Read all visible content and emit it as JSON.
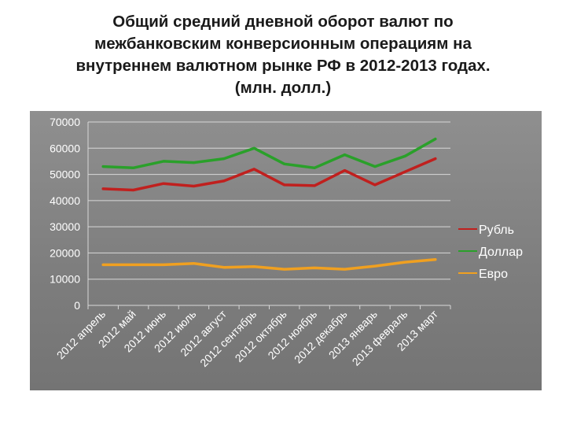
{
  "title": {
    "lines": [
      "Общий средний дневной оборот валют по",
      "межбанковским конверсионным операциям на",
      "внутреннем валютном рынке РФ в 2012-2013 годах.",
      "(млн. долл.)"
    ]
  },
  "chart_data": {
    "type": "line",
    "title": "Общий средний дневной оборот валют по межбанковским конверсионным операциям на внутреннем валютном рынке РФ в 2012-2013 годах. (млн. долл.)",
    "categories": [
      "2012 апрель",
      "2012 май",
      "2012 июнь",
      "2012 июль",
      "2012 август",
      "2012 сентябрь",
      "2012 октябрь",
      "2012 ноябрь",
      "2012 декабрь",
      "2013 январь",
      "2013 февраль",
      "2013 март"
    ],
    "series": [
      {
        "name": "Рубль",
        "color": "#c0201e",
        "values": [
          44500,
          44000,
          46500,
          45500,
          47500,
          52000,
          46000,
          45700,
          51500,
          46000,
          51000,
          56000
        ]
      },
      {
        "name": "Доллар",
        "color": "#2aa02a",
        "values": [
          53000,
          52500,
          55000,
          54500,
          56000,
          60000,
          54000,
          52500,
          57500,
          53000,
          57000,
          63500
        ]
      },
      {
        "name": "Евро",
        "color": "#f0a020",
        "values": [
          15500,
          15500,
          15500,
          16000,
          14500,
          14800,
          13800,
          14300,
          13800,
          15000,
          16500,
          17500
        ]
      }
    ],
    "ylim": [
      0,
      70000
    ],
    "yticks": [
      "70000",
      "60000",
      "50000",
      "40000",
      "30000",
      "20000",
      "10000",
      "0"
    ],
    "legend_position": "right",
    "grid": true,
    "xlabel": "",
    "ylabel": ""
  }
}
